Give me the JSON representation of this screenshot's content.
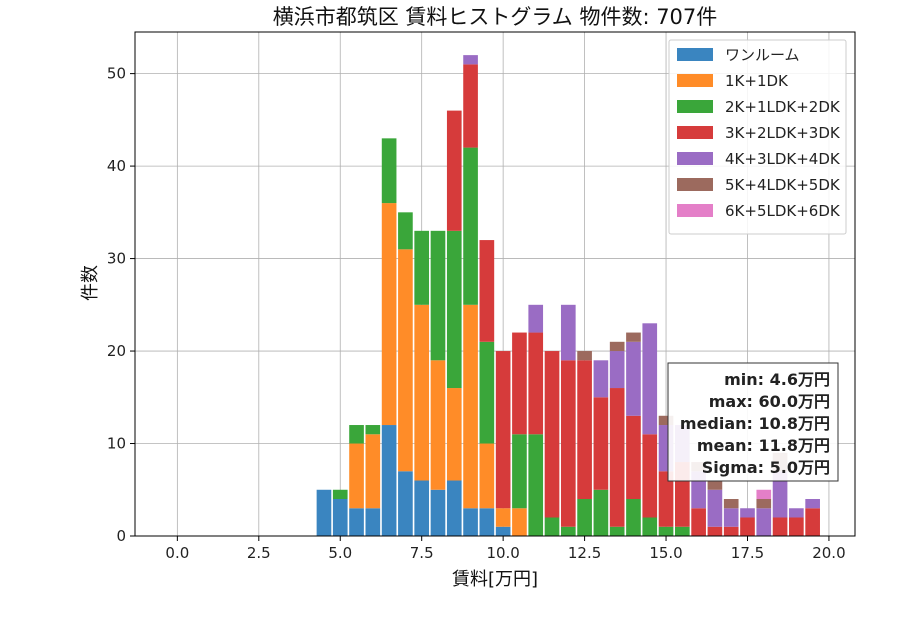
{
  "chart_data": {
    "type": "bar",
    "stacked": true,
    "title": "横浜市都筑区 賃料ヒストグラム 物件数: 707件",
    "xlabel": "賃料[万円]",
    "ylabel": "件数",
    "xlim": [
      -1.3,
      20.8
    ],
    "ylim": [
      0,
      54.5
    ],
    "xticks": [
      "0.0",
      "2.5",
      "5.0",
      "7.5",
      "10.0",
      "12.5",
      "15.0",
      "17.5",
      "20.0"
    ],
    "yticks": [
      "0",
      "10",
      "20",
      "30",
      "40",
      "50"
    ],
    "grid": true,
    "legend_position": "top-right",
    "bin_width": 0.5,
    "x": [
      4.5,
      5.0,
      5.5,
      6.0,
      6.5,
      7.0,
      7.5,
      8.0,
      8.5,
      9.0,
      9.5,
      10.0,
      10.5,
      11.0,
      11.5,
      12.0,
      12.5,
      13.0,
      13.5,
      14.0,
      14.5,
      15.0,
      15.5,
      16.0,
      16.5,
      17.0,
      17.5,
      18.0,
      18.5,
      19.0,
      19.5
    ],
    "series": [
      {
        "name": "ワンルーム",
        "color": "#3a85c0",
        "values": [
          5,
          4,
          3,
          3,
          12,
          7,
          6,
          5,
          6,
          3,
          3,
          1,
          0,
          0,
          0,
          0,
          0,
          0,
          0,
          0,
          0,
          0,
          0,
          0,
          0,
          0,
          0,
          0,
          0,
          0,
          0
        ]
      },
      {
        "name": "1K+1DK",
        "color": "#ff8c28",
        "values": [
          0,
          0,
          7,
          8,
          24,
          24,
          19,
          14,
          10,
          22,
          7,
          2,
          3,
          0,
          0,
          0,
          0,
          0,
          0,
          0,
          0,
          0,
          0,
          0,
          0,
          0,
          0,
          0,
          0,
          0,
          0
        ]
      },
      {
        "name": "2K+1LDK+2DK",
        "color": "#3aa63a",
        "values": [
          0,
          1,
          2,
          1,
          7,
          4,
          8,
          14,
          17,
          17,
          11,
          0,
          8,
          11,
          2,
          1,
          4,
          5,
          1,
          4,
          2,
          1,
          1,
          0,
          0,
          0,
          0,
          0,
          0,
          0,
          0
        ]
      },
      {
        "name": "3K+2LDK+3DK",
        "color": "#d63b3b",
        "values": [
          0,
          0,
          0,
          0,
          0,
          0,
          0,
          0,
          13,
          9,
          11,
          17,
          11,
          11,
          18,
          18,
          15,
          10,
          15,
          9,
          9,
          6,
          7,
          3,
          1,
          1,
          2,
          0,
          2,
          2,
          3
        ]
      },
      {
        "name": "4K+3LDK+4DK",
        "color": "#9a6cc4",
        "values": [
          0,
          0,
          0,
          0,
          0,
          0,
          0,
          0,
          0,
          1,
          0,
          0,
          0,
          3,
          0,
          6,
          0,
          4,
          4,
          8,
          12,
          5,
          4,
          4,
          4,
          2,
          1,
          3,
          5,
          1,
          1
        ]
      },
      {
        "name": "5K+4LDK+5DK",
        "color": "#9c6a5e",
        "values": [
          0,
          0,
          0,
          0,
          0,
          0,
          0,
          0,
          0,
          0,
          0,
          0,
          0,
          0,
          0,
          0,
          1,
          0,
          1,
          1,
          0,
          1,
          0,
          1,
          1,
          1,
          0,
          1,
          2,
          0,
          0
        ]
      },
      {
        "name": "6K+5LDK+6DK",
        "color": "#e47fc8",
        "values": [
          0,
          0,
          0,
          0,
          0,
          0,
          0,
          0,
          0,
          0,
          0,
          0,
          0,
          0,
          0,
          0,
          0,
          0,
          0,
          0,
          0,
          0,
          0,
          0,
          0,
          0,
          0,
          1,
          0,
          0,
          0
        ]
      }
    ],
    "stats_box": [
      "min: 4.6万円",
      "max: 60.0万円",
      "median: 10.8万円",
      "mean: 11.8万円",
      "Sigma: 5.0万円"
    ]
  }
}
